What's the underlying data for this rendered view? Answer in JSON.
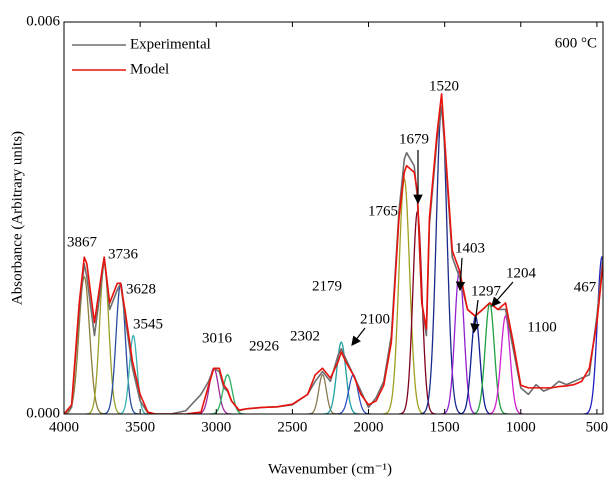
{
  "chart_data": {
    "type": "line",
    "annotation": "600 °C",
    "x_label": "Wavenumber (cm⁻¹)",
    "y_label": "Absorbance (Arbitrary units)",
    "xlim": [
      4000,
      460
    ],
    "xticks": [
      4000,
      3500,
      3000,
      2500,
      2000,
      1500,
      1000,
      500
    ],
    "ylim": [
      0,
      0.006
    ],
    "yticks": [
      {
        "value": 0,
        "label": "0.000"
      },
      {
        "value": 0.006,
        "label": "0.006"
      }
    ],
    "legend": "top-left",
    "x": [
      4000,
      3950,
      3900,
      3867,
      3850,
      3800,
      3750,
      3736,
      3700,
      3650,
      3628,
      3600,
      3550,
      3500,
      3450,
      3400,
      3300,
      3200,
      3100,
      3050,
      3016,
      2980,
      2950,
      2926,
      2900,
      2850,
      2800,
      2700,
      2600,
      2500,
      2400,
      2350,
      2302,
      2250,
      2200,
      2179,
      2150,
      2100,
      2050,
      2000,
      1950,
      1900,
      1850,
      1800,
      1765,
      1750,
      1700,
      1679,
      1650,
      1620,
      1600,
      1550,
      1520,
      1500,
      1450,
      1403,
      1350,
      1300,
      1250,
      1204,
      1150,
      1100,
      1050,
      1000,
      950,
      900,
      850,
      800,
      750,
      700,
      650,
      600,
      550,
      500,
      460
    ],
    "series": [
      {
        "name": "Experimental",
        "color": "#6e6e6e",
        "values": [
          0,
          0.0001,
          0.0016,
          0.0023,
          0.0021,
          0.0012,
          0.0021,
          0.0024,
          0.0016,
          0.0019,
          0.002,
          0.0015,
          0.0007,
          0.0002,
          2e-05,
          0,
          0,
          5e-05,
          0.0003,
          0.0005,
          0.0007,
          0.00065,
          0.0004,
          0.00035,
          0.0002,
          5e-05,
          8e-05,
          0.0001,
          0.00011,
          0.00014,
          0.0003,
          0.0005,
          0.00065,
          0.0005,
          0.0009,
          0.001,
          0.00085,
          0.0006,
          0.00035,
          0.0001,
          0.00025,
          0.0005,
          0.0012,
          0.0031,
          0.0039,
          0.004,
          0.0038,
          0.0033,
          0.0017,
          0.0012,
          0.0029,
          0.0042,
          0.0047,
          0.0041,
          0.0024,
          0.0021,
          0.0016,
          0.0015,
          0.0016,
          0.0017,
          0.0016,
          0.0016,
          0.001,
          0.0004,
          0.0003,
          0.00045,
          0.00035,
          0.0004,
          0.0005,
          0.00045,
          0.0005,
          0.00055,
          0.0006,
          0.0015,
          0.0024
        ]
      },
      {
        "name": "Model",
        "color": "#e8120c",
        "values": [
          0,
          0.00014,
          0.0017,
          0.0024,
          0.0023,
          0.0014,
          0.0022,
          0.0024,
          0.0017,
          0.002,
          0.002,
          0.0016,
          0.0008,
          0.0003,
          3e-05,
          0,
          0,
          0,
          3e-05,
          0.00044,
          0.0007,
          0.0007,
          0.00044,
          0.00037,
          0.0002,
          6e-05,
          8e-05,
          0.0001,
          0.00011,
          0.00015,
          0.0003,
          0.0006,
          0.0007,
          0.00055,
          0.0008,
          0.00095,
          0.0008,
          0.0006,
          0.0003,
          0.00014,
          0.0002,
          0.00044,
          0.0011,
          0.003,
          0.0037,
          0.0038,
          0.0037,
          0.0034,
          0.0017,
          0.0013,
          0.003,
          0.0043,
          0.0049,
          0.0042,
          0.0025,
          0.0022,
          0.0016,
          0.0015,
          0.0016,
          0.0017,
          0.0016,
          0.0017,
          0.0011,
          0.00044,
          0.0004,
          0.0004,
          0.0004,
          0.0004,
          0.00042,
          0.00043,
          0.00045,
          0.0005,
          0.0007,
          0.0014,
          0.0023
        ]
      }
    ],
    "peaks": [
      {
        "center": 3867,
        "height": 0.0021,
        "width": 35,
        "color": "#8b7d3a"
      },
      {
        "center": 3736,
        "height": 0.0023,
        "width": 30,
        "color": "#9aa02a"
      },
      {
        "center": 3628,
        "height": 0.002,
        "width": 30,
        "color": "#2a4fa0"
      },
      {
        "center": 3545,
        "height": 0.0012,
        "width": 25,
        "color": "#3cb0b0"
      },
      {
        "center": 3016,
        "height": 0.0007,
        "width": 30,
        "color": "#9a2a9a"
      },
      {
        "center": 2926,
        "height": 0.0006,
        "width": 30,
        "color": "#2ab060"
      },
      {
        "center": 2302,
        "height": 0.0006,
        "width": 25,
        "color": "#8a7a50"
      },
      {
        "center": 2179,
        "height": 0.0011,
        "width": 30,
        "color": "#20a0a0"
      },
      {
        "center": 2100,
        "height": 0.0006,
        "width": 30,
        "color": "#3050c0"
      },
      {
        "center": 1765,
        "height": 0.0036,
        "width": 35,
        "color": "#a0a020"
      },
      {
        "center": 1679,
        "height": 0.0031,
        "width": 30,
        "color": "#800020"
      },
      {
        "center": 1520,
        "height": 0.0047,
        "width": 35,
        "color": "#1a2a8a"
      },
      {
        "center": 1403,
        "height": 0.0022,
        "width": 30,
        "color": "#9020d0"
      },
      {
        "center": 1297,
        "height": 0.0015,
        "width": 28,
        "color": "#102090"
      },
      {
        "center": 1204,
        "height": 0.0017,
        "width": 30,
        "color": "#20a040"
      },
      {
        "center": 1100,
        "height": 0.0015,
        "width": 30,
        "color": "#d020d0"
      },
      {
        "center": 467,
        "height": 0.0024,
        "width": 30,
        "color": "#2020c0"
      }
    ]
  }
}
